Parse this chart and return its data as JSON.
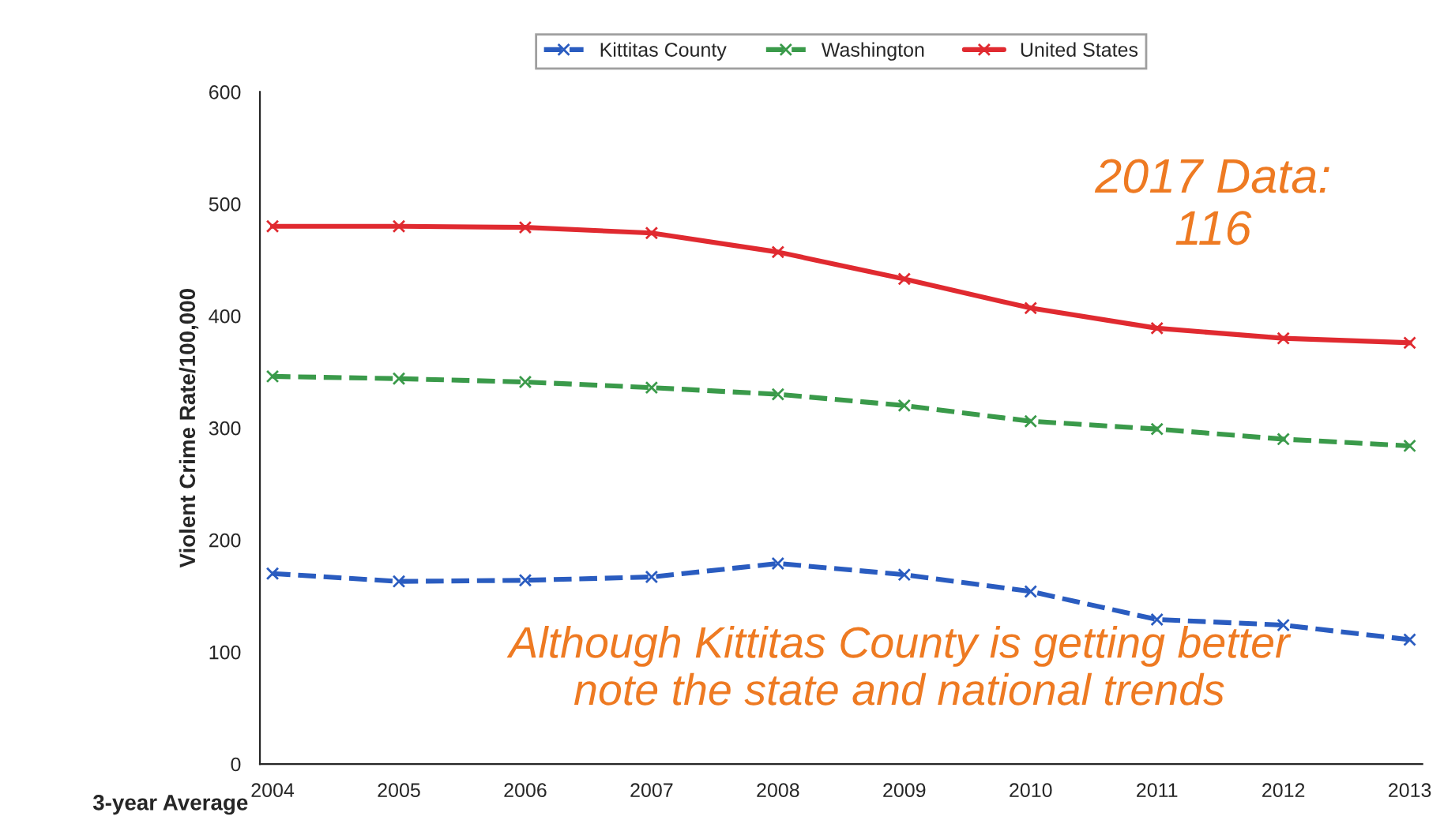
{
  "chart_data": {
    "type": "line",
    "xlabel": "3-year Average",
    "ylabel": "Violent Crime Rate/100,000",
    "categories": [
      "2004",
      "2005",
      "2006",
      "2007",
      "2008",
      "2009",
      "2010",
      "2011",
      "2012",
      "2013"
    ],
    "series": [
      {
        "name": "Kittitas County",
        "color": "#2a5cc0",
        "line_style": "dashed",
        "values": [
          170,
          163,
          164,
          167,
          179,
          169,
          154,
          129,
          124,
          111
        ]
      },
      {
        "name": "Washington",
        "color": "#3a9a4a",
        "line_style": "dashed",
        "values": [
          346,
          344,
          341,
          336,
          330,
          320,
          306,
          299,
          290,
          284
        ]
      },
      {
        "name": "United States",
        "color": "#e02a30",
        "line_style": "solid",
        "values": [
          480,
          480,
          479,
          474,
          457,
          433,
          407,
          389,
          380,
          376
        ]
      }
    ],
    "ylim": [
      0,
      600
    ],
    "yticks": [
      0,
      100,
      200,
      300,
      400,
      500,
      600
    ],
    "marker": "cross",
    "legend": "top",
    "grid": false,
    "annotations": [
      "2017 Data:\n116",
      "Although Kittitas County is getting better\nnote the state and national trends"
    ]
  }
}
